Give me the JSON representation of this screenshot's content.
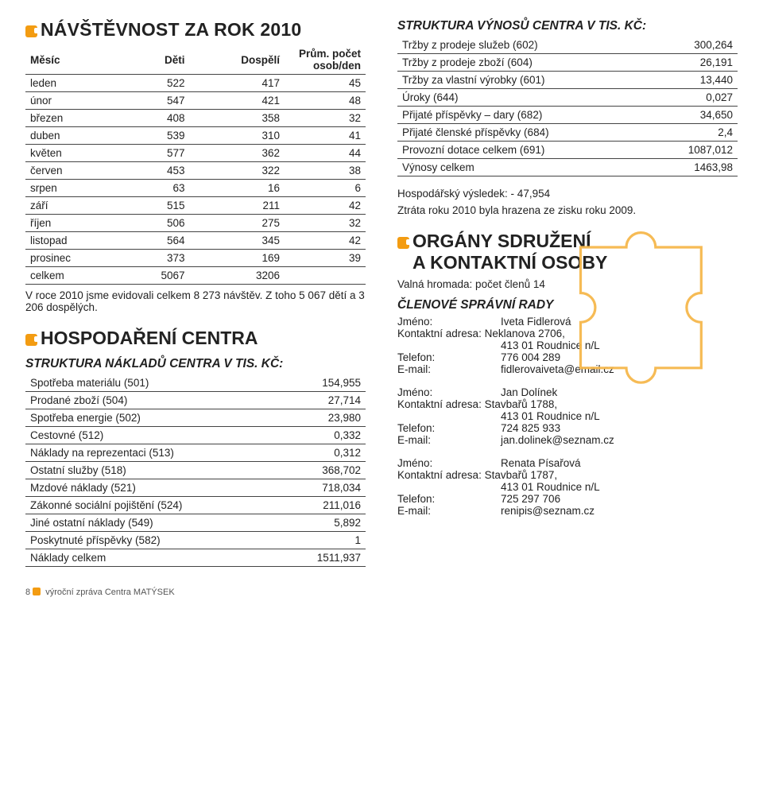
{
  "left": {
    "title": "NÁVŠTĚVNOST ZA ROK 2010",
    "t1": {
      "head": [
        "Měsíc",
        "Děti",
        "Dospělí",
        "Prům. počet osob/den"
      ],
      "rows": [
        [
          "leden",
          "522",
          "417",
          "45"
        ],
        [
          "únor",
          "547",
          "421",
          "48"
        ],
        [
          "březen",
          "408",
          "358",
          "32"
        ],
        [
          "duben",
          "539",
          "310",
          "41"
        ],
        [
          "květen",
          "577",
          "362",
          "44"
        ],
        [
          "červen",
          "453",
          "322",
          "38"
        ],
        [
          "srpen",
          "63",
          "16",
          "6"
        ],
        [
          "září",
          "515",
          "211",
          "42"
        ],
        [
          "říjen",
          "506",
          "275",
          "32"
        ],
        [
          "listopad",
          "564",
          "345",
          "42"
        ],
        [
          "prosinec",
          "373",
          "169",
          "39"
        ],
        [
          "celkem",
          "5067",
          "3206",
          ""
        ]
      ]
    },
    "note": "V roce 2010 jsme evidovali celkem 8 273 návštěv. Z toho 5 067 dětí a 3 206 dospělých.",
    "title2": "HOSPODAŘENÍ CENTRA",
    "sub2": "STRUKTURA NÁKLADŮ CENTRA V TIS. KČ:",
    "t2": [
      [
        "Spotřeba materiálu (501)",
        "154,955"
      ],
      [
        "Prodané zboží (504)",
        "27,714"
      ],
      [
        "Spotřeba energie (502)",
        "23,980"
      ],
      [
        "Cestovné (512)",
        "0,332"
      ],
      [
        "Náklady na reprezentaci (513)",
        "0,312"
      ],
      [
        "Ostatní služby (518)",
        "368,702"
      ],
      [
        "Mzdové náklady (521)",
        "718,034"
      ],
      [
        "Zákonné sociální pojištění (524)",
        "211,016"
      ],
      [
        "Jiné ostatní náklady (549)",
        "5,892"
      ],
      [
        "Poskytnuté příspěvky (582)",
        "1"
      ],
      [
        "Náklady celkem",
        "1511,937"
      ]
    ]
  },
  "right": {
    "sub1": "STRUKTURA VÝNOSŮ CENTRA V TIS. KČ:",
    "t3": [
      [
        "Tržby z prodeje služeb (602)",
        "300,264"
      ],
      [
        "Tržby z prodeje zboží (604)",
        "26,191"
      ],
      [
        "Tržby za vlastní výrobky (601)",
        "13,440"
      ],
      [
        "Úroky (644)",
        "0,027"
      ],
      [
        "Přijaté příspěvky – dary (682)",
        "34,650"
      ],
      [
        "Přijaté členské příspěvky (684)",
        "2,4"
      ],
      [
        "Provozní dotace celkem (691)",
        "1087,012"
      ],
      [
        "Výnosy celkem",
        "1463,98"
      ]
    ],
    "p1": "Hospodářský výsledek: - 47,954",
    "p2": "Ztráta roku 2010 byla hrazena ze zisku roku 2009.",
    "title2a": "ORGÁNY SDRUŽENÍ",
    "title2b": "A KONTAKTNÍ OSOBY",
    "p3": "Valná hromada: počet členů 14",
    "sub2": "ČLENOVÉ SPRÁVNÍ RADY",
    "c1": {
      "name_l": "Jméno:",
      "name": "Iveta Fidlerová",
      "addr_l": "Kontaktní adresa: Neklanova 2706,",
      "addr2": "413 01 Roudnice n/L",
      "tel_l": "Telefon:",
      "tel": "776 004 289",
      "mail_l": "E-mail:",
      "mail": "fidlerovaiveta@email.cz"
    },
    "c2": {
      "name_l": "Jméno:",
      "name": "Jan Dolínek",
      "addr_l": "Kontaktní adresa: Stavbařů 1788,",
      "addr2": "413 01 Roudnice n/L",
      "tel_l": "Telefon:",
      "tel": "724 825 933",
      "mail_l": "E-mail:",
      "mail": "jan.dolinek@seznam.cz"
    },
    "c3": {
      "name_l": "Jméno:",
      "name": "Renata Písařová",
      "addr_l": "Kontaktní adresa: Stavbařů 1787,",
      "addr2": "413 01 Roudnice n/L",
      "tel_l": "Telefon:",
      "tel": "725 297 706",
      "mail_l": "E-mail:",
      "mail": "renipis@seznam.cz"
    }
  },
  "footer": {
    "num": "8",
    "text": "výroční zpráva Centra MATÝSEK"
  }
}
